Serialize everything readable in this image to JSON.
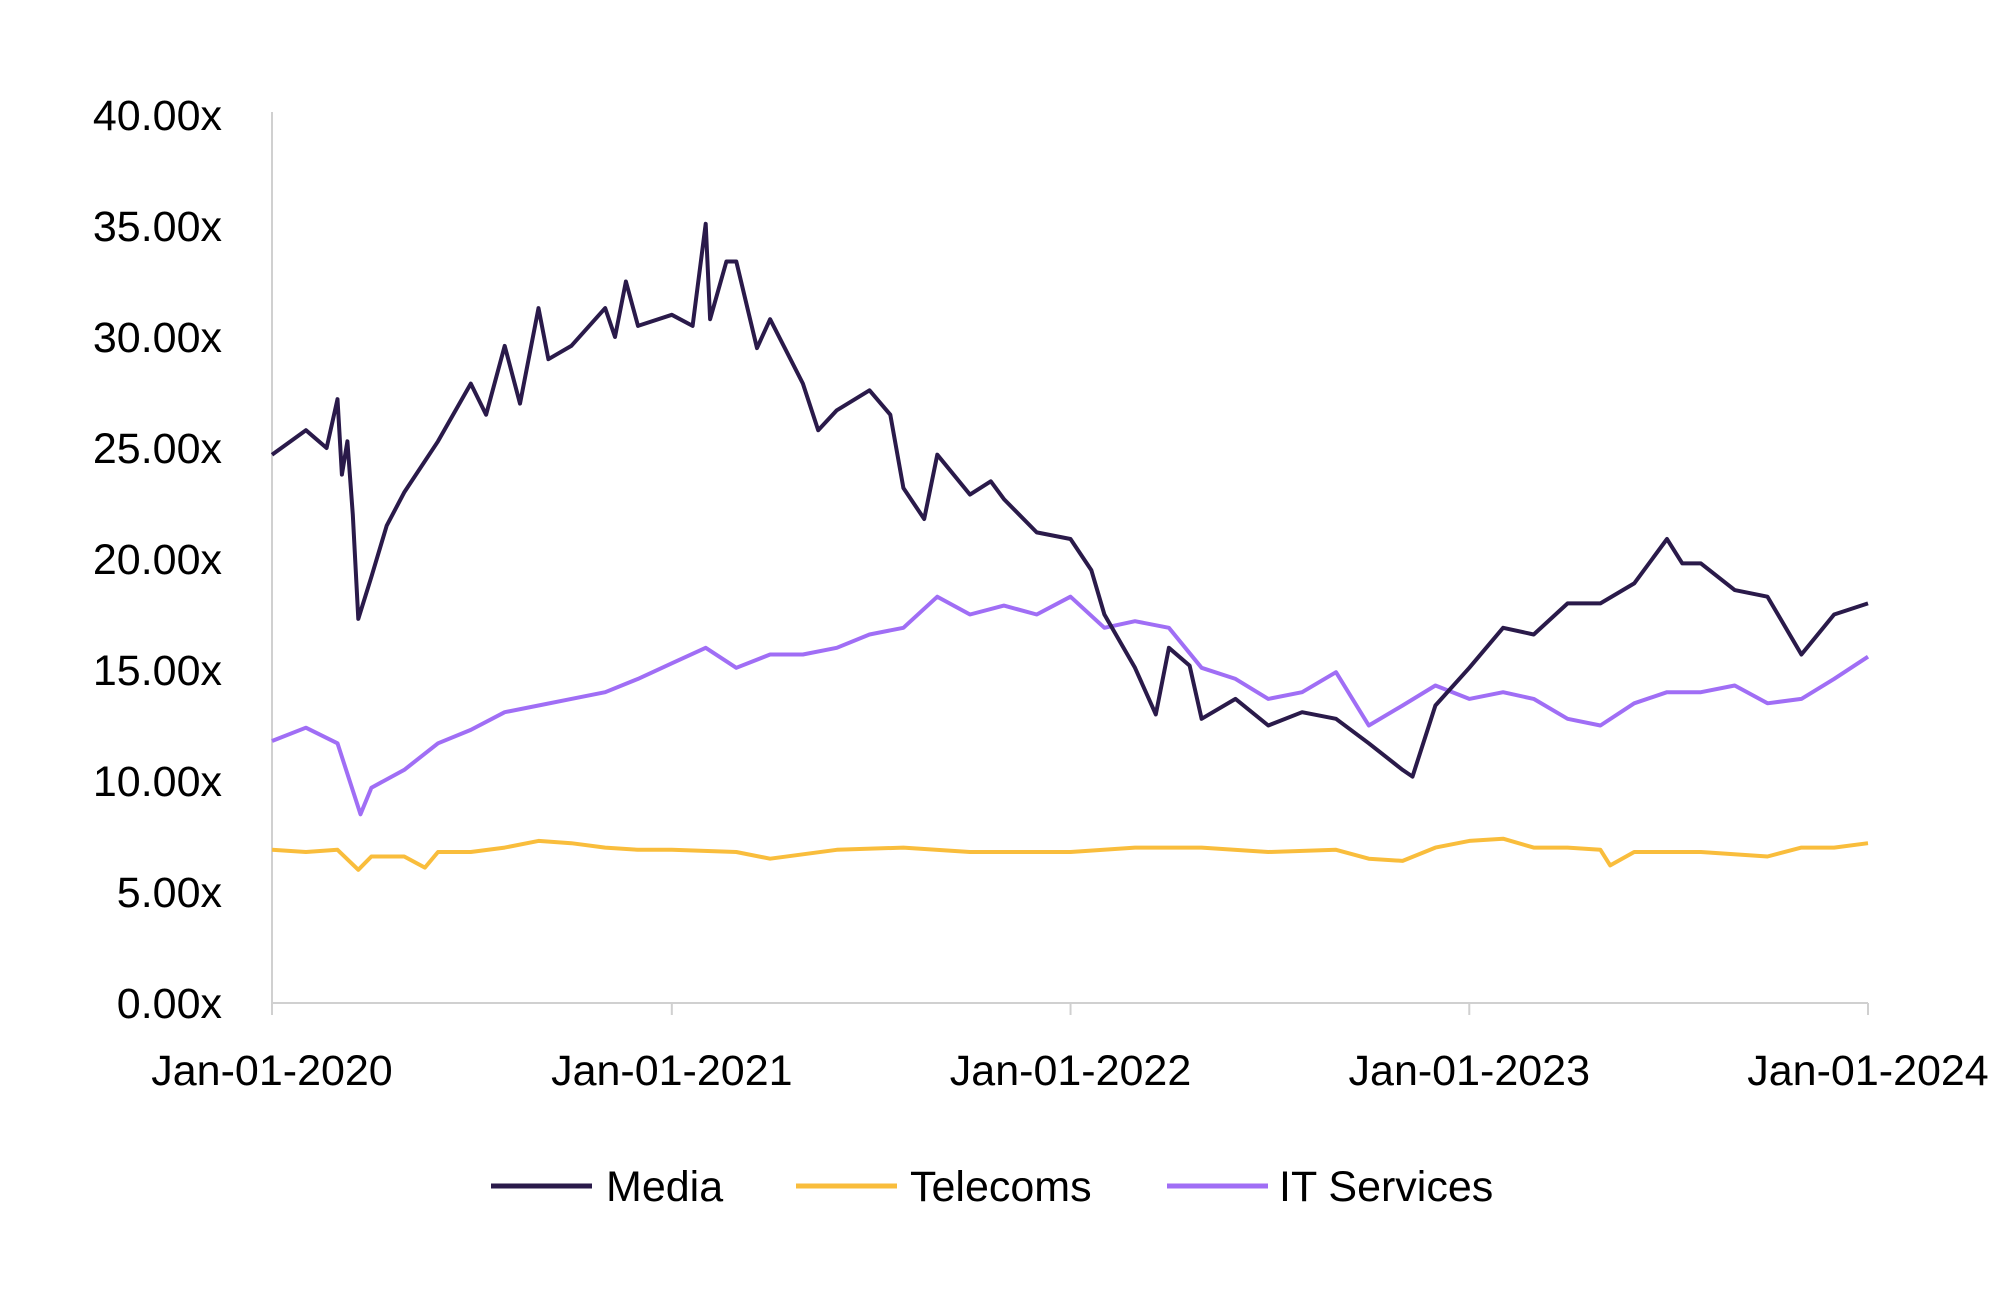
{
  "chart_data": {
    "type": "line",
    "title": "",
    "xlabel": "",
    "ylabel": "",
    "ylim": [
      0,
      40
    ],
    "xlim": [
      "2020-01-01",
      "2024-01-01"
    ],
    "grid": false,
    "legend_position": "bottom",
    "y_ticks": [
      "0.00x",
      "5.00x",
      "10.00x",
      "15.00x",
      "20.00x",
      "25.00x",
      "30.00x",
      "35.00x",
      "40.00x"
    ],
    "y_tick_values": [
      0,
      5,
      10,
      15,
      20,
      25,
      30,
      35,
      40
    ],
    "x_ticks": [
      "Jan-01-2020",
      "Jan-01-2021",
      "Jan-01-2022",
      "Jan-01-2023",
      "Jan-01-2024"
    ],
    "x_tick_values": [
      "2020-01-01",
      "2021-01-01",
      "2022-01-01",
      "2023-01-01",
      "2024-01-01"
    ],
    "series": [
      {
        "name": "Media",
        "color": "#2a1a4a",
        "points": [
          [
            "2020-01-01",
            24.7
          ],
          [
            "2020-02-01",
            25.8
          ],
          [
            "2020-02-20",
            25.0
          ],
          [
            "2020-03-01",
            27.2
          ],
          [
            "2020-03-05",
            23.8
          ],
          [
            "2020-03-10",
            25.3
          ],
          [
            "2020-03-15",
            22.0
          ],
          [
            "2020-03-20",
            17.3
          ],
          [
            "2020-04-01",
            19.2
          ],
          [
            "2020-04-15",
            21.5
          ],
          [
            "2020-05-01",
            23.0
          ],
          [
            "2020-06-01",
            25.3
          ],
          [
            "2020-07-01",
            27.9
          ],
          [
            "2020-07-15",
            26.5
          ],
          [
            "2020-08-01",
            29.6
          ],
          [
            "2020-08-15",
            27.0
          ],
          [
            "2020-09-01",
            31.3
          ],
          [
            "2020-09-10",
            29.0
          ],
          [
            "2020-10-01",
            29.6
          ],
          [
            "2020-11-01",
            31.3
          ],
          [
            "2020-11-10",
            30.0
          ],
          [
            "2020-11-20",
            32.5
          ],
          [
            "2020-12-01",
            30.5
          ],
          [
            "2021-01-01",
            31.0
          ],
          [
            "2021-01-20",
            30.5
          ],
          [
            "2021-02-01",
            35.1
          ],
          [
            "2021-02-05",
            30.8
          ],
          [
            "2021-02-20",
            33.4
          ],
          [
            "2021-03-01",
            33.4
          ],
          [
            "2021-03-20",
            29.5
          ],
          [
            "2021-04-01",
            30.8
          ],
          [
            "2021-05-01",
            27.9
          ],
          [
            "2021-05-15",
            25.8
          ],
          [
            "2021-06-01",
            26.7
          ],
          [
            "2021-07-01",
            27.6
          ],
          [
            "2021-07-20",
            26.5
          ],
          [
            "2021-08-01",
            23.2
          ],
          [
            "2021-08-20",
            21.8
          ],
          [
            "2021-09-01",
            24.7
          ],
          [
            "2021-10-01",
            22.9
          ],
          [
            "2021-10-20",
            23.5
          ],
          [
            "2021-11-01",
            22.7
          ],
          [
            "2021-12-01",
            21.2
          ],
          [
            "2022-01-01",
            20.9
          ],
          [
            "2022-01-20",
            19.5
          ],
          [
            "2022-02-01",
            17.5
          ],
          [
            "2022-03-01",
            15.1
          ],
          [
            "2022-03-20",
            13.0
          ],
          [
            "2022-04-01",
            16.0
          ],
          [
            "2022-04-20",
            15.2
          ],
          [
            "2022-05-01",
            12.8
          ],
          [
            "2022-06-01",
            13.7
          ],
          [
            "2022-07-01",
            12.5
          ],
          [
            "2022-08-01",
            13.1
          ],
          [
            "2022-09-01",
            12.8
          ],
          [
            "2022-10-01",
            11.7
          ],
          [
            "2022-11-01",
            10.5
          ],
          [
            "2022-11-10",
            10.2
          ],
          [
            "2022-12-01",
            13.4
          ],
          [
            "2023-01-01",
            15.1
          ],
          [
            "2023-02-01",
            16.9
          ],
          [
            "2023-03-01",
            16.6
          ],
          [
            "2023-04-01",
            18.0
          ],
          [
            "2023-05-01",
            18.0
          ],
          [
            "2023-06-01",
            18.9
          ],
          [
            "2023-07-01",
            20.9
          ],
          [
            "2023-07-15",
            19.8
          ],
          [
            "2023-08-01",
            19.8
          ],
          [
            "2023-09-01",
            18.6
          ],
          [
            "2023-10-01",
            18.3
          ],
          [
            "2023-11-01",
            15.7
          ],
          [
            "2023-12-01",
            17.5
          ],
          [
            "2024-01-01",
            18.0
          ]
        ]
      },
      {
        "name": "Telecoms",
        "color": "#f9bd3c",
        "points": [
          [
            "2020-01-01",
            6.9
          ],
          [
            "2020-02-01",
            6.8
          ],
          [
            "2020-03-01",
            6.9
          ],
          [
            "2020-03-20",
            6.0
          ],
          [
            "2020-04-01",
            6.6
          ],
          [
            "2020-05-01",
            6.6
          ],
          [
            "2020-05-20",
            6.1
          ],
          [
            "2020-06-01",
            6.8
          ],
          [
            "2020-07-01",
            6.8
          ],
          [
            "2020-08-01",
            7.0
          ],
          [
            "2020-09-01",
            7.3
          ],
          [
            "2020-10-01",
            7.2
          ],
          [
            "2020-11-01",
            7.0
          ],
          [
            "2020-12-01",
            6.9
          ],
          [
            "2021-01-01",
            6.9
          ],
          [
            "2021-03-01",
            6.8
          ],
          [
            "2021-04-01",
            6.5
          ],
          [
            "2021-06-01",
            6.9
          ],
          [
            "2021-08-01",
            7.0
          ],
          [
            "2021-10-01",
            6.8
          ],
          [
            "2021-12-01",
            6.8
          ],
          [
            "2022-01-01",
            6.8
          ],
          [
            "2022-03-01",
            7.0
          ],
          [
            "2022-05-01",
            7.0
          ],
          [
            "2022-07-01",
            6.8
          ],
          [
            "2022-09-01",
            6.9
          ],
          [
            "2022-10-01",
            6.5
          ],
          [
            "2022-11-01",
            6.4
          ],
          [
            "2022-12-01",
            7.0
          ],
          [
            "2023-01-01",
            7.3
          ],
          [
            "2023-02-01",
            7.4
          ],
          [
            "2023-03-01",
            7.0
          ],
          [
            "2023-04-01",
            7.0
          ],
          [
            "2023-05-01",
            6.9
          ],
          [
            "2023-05-10",
            6.2
          ],
          [
            "2023-06-01",
            6.8
          ],
          [
            "2023-08-01",
            6.8
          ],
          [
            "2023-10-01",
            6.6
          ],
          [
            "2023-11-01",
            7.0
          ],
          [
            "2023-12-01",
            7.0
          ],
          [
            "2024-01-01",
            7.2
          ]
        ]
      },
      {
        "name": "IT Services",
        "color": "#a06ef5",
        "points": [
          [
            "2020-01-01",
            11.8
          ],
          [
            "2020-02-01",
            12.4
          ],
          [
            "2020-03-01",
            11.7
          ],
          [
            "2020-03-22",
            8.5
          ],
          [
            "2020-04-01",
            9.7
          ],
          [
            "2020-05-01",
            10.5
          ],
          [
            "2020-06-01",
            11.7
          ],
          [
            "2020-07-01",
            12.3
          ],
          [
            "2020-08-01",
            13.1
          ],
          [
            "2020-09-01",
            13.4
          ],
          [
            "2020-10-01",
            13.7
          ],
          [
            "2020-11-01",
            14.0
          ],
          [
            "2020-12-01",
            14.6
          ],
          [
            "2021-01-01",
            15.3
          ],
          [
            "2021-02-01",
            16.0
          ],
          [
            "2021-03-01",
            15.1
          ],
          [
            "2021-04-01",
            15.7
          ],
          [
            "2021-05-01",
            15.7
          ],
          [
            "2021-06-01",
            16.0
          ],
          [
            "2021-07-01",
            16.6
          ],
          [
            "2021-08-01",
            16.9
          ],
          [
            "2021-09-01",
            18.3
          ],
          [
            "2021-10-01",
            17.5
          ],
          [
            "2021-11-01",
            17.9
          ],
          [
            "2021-12-01",
            17.5
          ],
          [
            "2022-01-01",
            18.3
          ],
          [
            "2022-02-01",
            16.9
          ],
          [
            "2022-03-01",
            17.2
          ],
          [
            "2022-04-01",
            16.9
          ],
          [
            "2022-05-01",
            15.1
          ],
          [
            "2022-06-01",
            14.6
          ],
          [
            "2022-07-01",
            13.7
          ],
          [
            "2022-08-01",
            14.0
          ],
          [
            "2022-09-01",
            14.9
          ],
          [
            "2022-10-01",
            12.5
          ],
          [
            "2022-11-01",
            13.4
          ],
          [
            "2022-12-01",
            14.3
          ],
          [
            "2023-01-01",
            13.7
          ],
          [
            "2023-02-01",
            14.0
          ],
          [
            "2023-03-01",
            13.7
          ],
          [
            "2023-04-01",
            12.8
          ],
          [
            "2023-05-01",
            12.5
          ],
          [
            "2023-06-01",
            13.5
          ],
          [
            "2023-07-01",
            14.0
          ],
          [
            "2023-08-01",
            14.0
          ],
          [
            "2023-09-01",
            14.3
          ],
          [
            "2023-10-01",
            13.5
          ],
          [
            "2023-11-01",
            13.7
          ],
          [
            "2023-12-01",
            14.6
          ],
          [
            "2024-01-01",
            15.6
          ]
        ]
      }
    ]
  }
}
